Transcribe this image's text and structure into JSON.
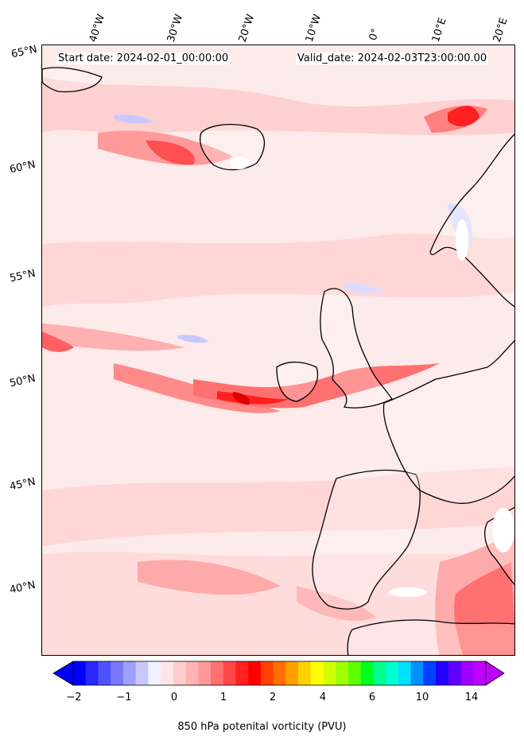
{
  "header": {
    "start_date": "Start date: 2024-02-01_00:00:00",
    "valid_date": "Valid_date: 2024-02-03T23:00:00.00"
  },
  "axes": {
    "longitude_labels": [
      "40°W",
      "30°W",
      "20°W",
      "10°W",
      "0°",
      "10°E",
      "20°E"
    ],
    "latitude_labels": [
      "65°N",
      "60°N",
      "55°N",
      "50°N",
      "45°N",
      "40°N"
    ]
  },
  "colorbar": {
    "label": "850 hPa potenital vorticity (PVU)",
    "tick_labels": [
      "−2",
      "−1",
      "0",
      "1",
      "2",
      "4",
      "6",
      "10",
      "14"
    ],
    "colors": [
      "#0000ff",
      "#2828ff",
      "#5050ff",
      "#7878ff",
      "#a0a0ff",
      "#c8c8ff",
      "#f0f0ff",
      "#ffe6e6",
      "#ffcccc",
      "#ffb3b3",
      "#ff9999",
      "#ff7070",
      "#ff4848",
      "#ff2020",
      "#ff0000",
      "#ff4000",
      "#ff7000",
      "#ffa000",
      "#ffd000",
      "#ffff00",
      "#d0ff00",
      "#a0ff00",
      "#60ff00",
      "#00ff20",
      "#00ff90",
      "#00ffd0",
      "#00e0ff",
      "#0090ff",
      "#0040ff",
      "#2000ff",
      "#6000ff",
      "#a000ff",
      "#c000ff"
    ]
  }
}
